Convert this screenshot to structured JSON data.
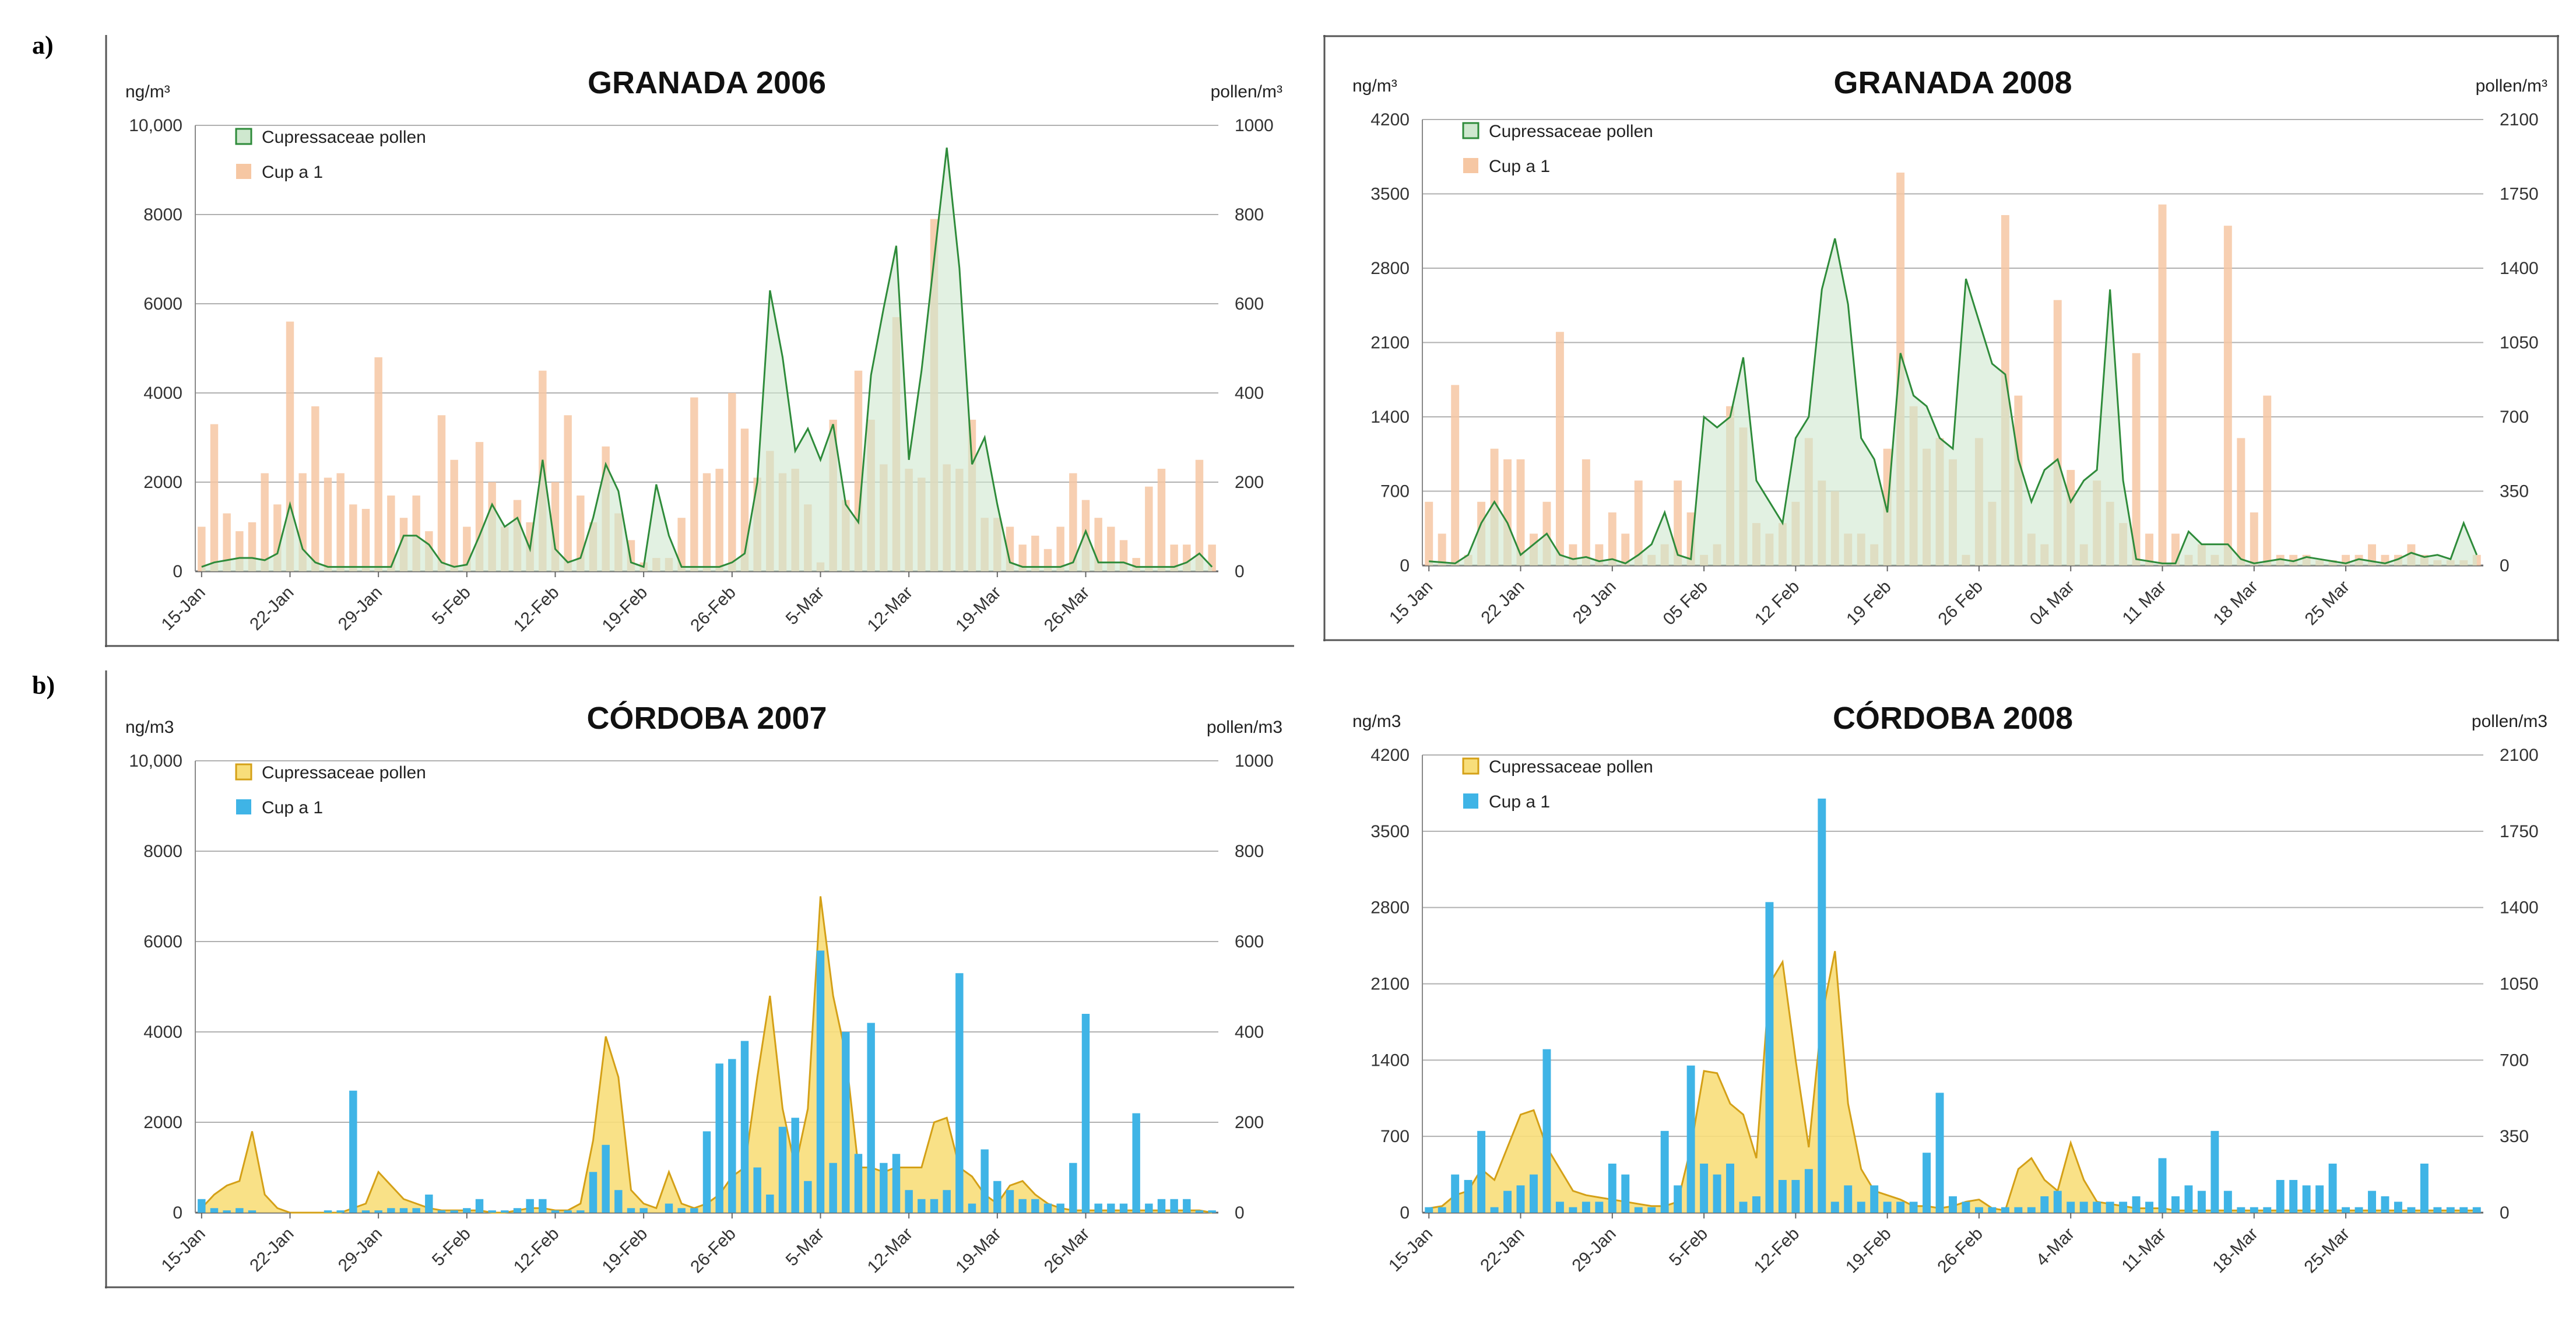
{
  "panels": {
    "a": "a)",
    "b": "b)"
  },
  "colors": {
    "pollen_green_line": "#2e8b3a",
    "pollen_green_fill": "#cfe8cf",
    "pollen_yellow_line": "#d4a017",
    "pollen_yellow_fill": "#f8de7a",
    "cup_orange": "#f6c7a3",
    "cup_blue": "#3fb4e6",
    "grid": "#b0b0b0",
    "frame": "#555555"
  },
  "chart_data": [
    {
      "id": "granada2006",
      "type": "bar+area",
      "title": "GRANADA 2006",
      "ylabel_left": "ng/m³",
      "ylabel_right": "pollen/m³",
      "left_ylim": [
        0,
        10000
      ],
      "left_ticks": [
        0,
        2000,
        4000,
        6000,
        8000,
        10000
      ],
      "left_tick_labels": [
        "0",
        "2000",
        "4000",
        "6000",
        "8000",
        "10,000"
      ],
      "right_ylim": [
        0,
        1000
      ],
      "right_ticks": [
        0,
        200,
        400,
        600,
        800,
        1000
      ],
      "right_tick_labels": [
        "0",
        "200",
        "400",
        "600",
        "800",
        "1000"
      ],
      "x_tick_labels": [
        "15-Jan",
        "22-Jan",
        "29-Jan",
        "5-Feb",
        "12-Feb",
        "19-Feb",
        "26-Feb",
        "5-Mar",
        "12-Mar",
        "19-Mar",
        "26-Mar"
      ],
      "days": 81,
      "legend": [
        {
          "label": "Cupressaceae pollen",
          "kind": "area"
        },
        {
          "label": "Cup a 1",
          "kind": "bar"
        }
      ],
      "pollen_style": "green",
      "bar_style": "orange",
      "series": [
        {
          "name": "Cup a 1",
          "axis": "left",
          "values": [
            1000,
            3300,
            1300,
            900,
            1100,
            2200,
            1500,
            5600,
            2200,
            3700,
            2100,
            2200,
            1500,
            1400,
            4800,
            1700,
            1200,
            1700,
            900,
            3500,
            2500,
            1000,
            2900,
            2000,
            1000,
            1600,
            1100,
            4500,
            2000,
            3500,
            1700,
            1100,
            2800,
            1300,
            700,
            200,
            300,
            300,
            1200,
            3900,
            2200,
            2300,
            4000,
            3200,
            2100,
            2700,
            2200,
            2300,
            1500,
            200,
            3400,
            1600,
            4500,
            3400,
            2400,
            5700,
            2300,
            2100,
            7900,
            2400,
            2300,
            3400,
            1200,
            1200,
            1000,
            600,
            800,
            500,
            1000,
            2200,
            1600,
            1200,
            1000,
            700,
            300,
            1900,
            2300,
            600,
            600,
            2500,
            600
          ]
        },
        {
          "name": "Cupressaceae pollen",
          "axis": "right",
          "values": [
            10,
            20,
            25,
            30,
            30,
            25,
            40,
            150,
            50,
            20,
            10,
            10,
            10,
            10,
            10,
            10,
            80,
            80,
            60,
            20,
            10,
            15,
            80,
            150,
            100,
            120,
            50,
            250,
            50,
            20,
            30,
            120,
            240,
            180,
            20,
            10,
            195,
            80,
            10,
            10,
            10,
            10,
            20,
            40,
            200,
            630,
            480,
            270,
            320,
            250,
            330,
            150,
            110,
            440,
            590,
            730,
            250,
            450,
            700,
            950,
            680,
            240,
            300,
            150,
            20,
            10,
            10,
            10,
            10,
            20,
            90,
            20,
            20,
            20,
            10,
            10,
            10,
            10,
            20,
            40,
            10
          ]
        }
      ]
    },
    {
      "id": "granada2008",
      "type": "bar+area",
      "title": "GRANADA 2008",
      "ylabel_left": "ng/m³",
      "ylabel_right": "pollen/m³",
      "left_ylim": [
        0,
        4200
      ],
      "left_ticks": [
        0,
        700,
        1400,
        2100,
        2800,
        3500,
        4200
      ],
      "left_tick_labels": [
        "0",
        "700",
        "1400",
        "2100",
        "2800",
        "3500",
        "4200"
      ],
      "right_ylim": [
        0,
        2100
      ],
      "right_ticks": [
        0,
        350,
        700,
        1050,
        1400,
        1750,
        2100
      ],
      "right_tick_labels": [
        "0",
        "350",
        "700",
        "1050",
        "1400",
        "1750",
        "2100"
      ],
      "x_tick_labels": [
        "15 Jan",
        "22 Jan",
        "29 Jan",
        "05 Feb",
        "12 Feb",
        "19 Feb",
        "26 Feb",
        "04 Mar",
        "11 Mar",
        "18 Mar",
        "25 Mar"
      ],
      "days": 81,
      "legend": [
        {
          "label": "Cupressaceae pollen",
          "kind": "area"
        },
        {
          "label": "Cup a 1",
          "kind": "bar"
        }
      ],
      "pollen_style": "green",
      "bar_style": "orange",
      "series": [
        {
          "name": "Cup a 1",
          "axis": "left",
          "values": [
            600,
            300,
            1700,
            100,
            600,
            1100,
            1000,
            1000,
            300,
            600,
            2200,
            200,
            1000,
            200,
            500,
            300,
            800,
            100,
            200,
            800,
            500,
            100,
            200,
            1500,
            1300,
            400,
            300,
            400,
            600,
            1200,
            800,
            700,
            300,
            300,
            200,
            1100,
            3700,
            1500,
            1100,
            1200,
            1000,
            100,
            1200,
            600,
            3300,
            1600,
            300,
            200,
            2500,
            900,
            200,
            800,
            600,
            400,
            2000,
            300,
            3400,
            300,
            100,
            200,
            100,
            3200,
            1200,
            500,
            1600,
            100,
            100,
            100,
            50,
            50,
            100,
            100,
            200,
            100,
            100,
            200,
            100,
            50,
            50,
            50,
            100
          ]
        },
        {
          "name": "Cupressaceae pollen",
          "axis": "right",
          "values": [
            20,
            15,
            10,
            50,
            200,
            300,
            200,
            50,
            100,
            150,
            50,
            30,
            40,
            20,
            30,
            10,
            50,
            100,
            250,
            50,
            30,
            700,
            650,
            700,
            980,
            400,
            300,
            200,
            600,
            700,
            1300,
            1540,
            1230,
            600,
            500,
            250,
            1000,
            800,
            750,
            600,
            550,
            1350,
            1150,
            950,
            900,
            500,
            300,
            450,
            500,
            300,
            400,
            450,
            1300,
            400,
            30,
            20,
            10,
            10,
            160,
            100,
            100,
            100,
            30,
            10,
            20,
            30,
            20,
            40,
            30,
            20,
            10,
            30,
            20,
            10,
            30,
            60,
            40,
            50,
            30,
            200,
            50
          ]
        }
      ]
    },
    {
      "id": "cordoba2007",
      "type": "bar+area",
      "title": "CÓRDOBA 2007",
      "ylabel_left": "ng/m3",
      "ylabel_right": "pollen/m3",
      "left_ylim": [
        0,
        10000
      ],
      "left_ticks": [
        0,
        2000,
        4000,
        6000,
        8000,
        10000
      ],
      "left_tick_labels": [
        "0",
        "2000",
        "4000",
        "6000",
        "8000",
        "10,000"
      ],
      "right_ylim": [
        0,
        1000
      ],
      "right_ticks": [
        0,
        200,
        400,
        600,
        800,
        1000
      ],
      "right_tick_labels": [
        "0",
        "200",
        "400",
        "600",
        "800",
        "1000"
      ],
      "x_tick_labels": [
        "15-Jan",
        "22-Jan",
        "29-Jan",
        "5-Feb",
        "12-Feb",
        "19-Feb",
        "26-Feb",
        "5-Mar",
        "12-Mar",
        "19-Mar",
        "26-Mar"
      ],
      "days": 81,
      "legend": [
        {
          "label": "Cupressaceae pollen",
          "kind": "area"
        },
        {
          "label": "Cup a 1",
          "kind": "bar"
        }
      ],
      "pollen_style": "yellow",
      "bar_style": "blue",
      "series": [
        {
          "name": "Cup a 1",
          "axis": "left",
          "values": [
            300,
            100,
            50,
            100,
            50,
            0,
            0,
            0,
            0,
            0,
            50,
            50,
            2700,
            50,
            50,
            100,
            100,
            100,
            400,
            50,
            50,
            100,
            300,
            50,
            50,
            100,
            300,
            300,
            50,
            50,
            50,
            900,
            1500,
            500,
            100,
            100,
            0,
            200,
            100,
            100,
            1800,
            3300,
            3400,
            3800,
            1000,
            400,
            1900,
            2100,
            700,
            5800,
            1100,
            4000,
            1300,
            4200,
            1100,
            1300,
            500,
            300,
            300,
            500,
            5300,
            200,
            1400,
            700,
            500,
            300,
            300,
            200,
            200,
            1100,
            4400,
            200,
            200,
            200,
            2200,
            200,
            300,
            300,
            300,
            50,
            50
          ]
        },
        {
          "name": "Cupressaceae pollen",
          "axis": "right",
          "values": [
            10,
            40,
            60,
            70,
            180,
            40,
            10,
            0,
            0,
            0,
            0,
            0,
            10,
            20,
            90,
            60,
            30,
            20,
            10,
            5,
            5,
            5,
            5,
            0,
            0,
            5,
            10,
            10,
            5,
            5,
            20,
            160,
            390,
            300,
            50,
            20,
            10,
            90,
            20,
            10,
            20,
            40,
            80,
            100,
            300,
            480,
            230,
            100,
            230,
            700,
            480,
            350,
            100,
            100,
            90,
            100,
            100,
            100,
            200,
            210,
            100,
            80,
            40,
            20,
            60,
            70,
            40,
            20,
            10,
            5,
            5,
            5,
            5,
            5,
            5,
            5,
            5,
            5,
            5,
            5,
            0
          ]
        }
      ]
    },
    {
      "id": "cordoba2008",
      "type": "bar+area",
      "title": "CÓRDOBA 2008",
      "ylabel_left": "ng/m3",
      "ylabel_right": "pollen/m3",
      "left_ylim": [
        0,
        4200
      ],
      "left_ticks": [
        0,
        700,
        1400,
        2100,
        2800,
        3500,
        4200
      ],
      "left_tick_labels": [
        "0",
        "700",
        "1400",
        "2100",
        "2800",
        "3500",
        "4200"
      ],
      "right_ylim": [
        0,
        2100
      ],
      "right_ticks": [
        0,
        350,
        700,
        1050,
        1400,
        1750,
        2100
      ],
      "right_tick_labels": [
        "0",
        "350",
        "700",
        "1050",
        "1400",
        "1750",
        "2100"
      ],
      "x_tick_labels": [
        "15-Jan",
        "22-Jan",
        "29-Jan",
        "5-Feb",
        "12-Feb",
        "19-Feb",
        "26-Feb",
        "4-Mar",
        "11-Mar",
        "18-Mar",
        "25-Mar"
      ],
      "days": 81,
      "legend": [
        {
          "label": "Cupressaceae pollen",
          "kind": "area"
        },
        {
          "label": "Cup a 1",
          "kind": "bar"
        }
      ],
      "pollen_style": "yellow",
      "bar_style": "blue",
      "series": [
        {
          "name": "Cup a 1",
          "axis": "left",
          "values": [
            50,
            50,
            350,
            300,
            750,
            50,
            200,
            250,
            350,
            1500,
            100,
            50,
            100,
            100,
            450,
            350,
            50,
            50,
            750,
            250,
            1350,
            450,
            350,
            450,
            100,
            150,
            2850,
            300,
            300,
            400,
            3800,
            100,
            250,
            100,
            250,
            100,
            100,
            100,
            550,
            1100,
            150,
            100,
            50,
            50,
            50,
            50,
            50,
            150,
            200,
            100,
            100,
            100,
            100,
            100,
            150,
            100,
            500,
            150,
            250,
            200,
            750,
            200,
            50,
            50,
            50,
            300,
            300,
            250,
            250,
            450,
            50,
            50,
            200,
            150,
            100,
            50,
            450,
            50,
            50,
            50,
            50
          ]
        },
        {
          "name": "Cupressaceae pollen",
          "axis": "right",
          "values": [
            20,
            30,
            80,
            100,
            200,
            150,
            300,
            450,
            470,
            300,
            200,
            100,
            80,
            70,
            60,
            50,
            40,
            30,
            30,
            50,
            300,
            650,
            640,
            500,
            450,
            250,
            1050,
            1150,
            700,
            300,
            900,
            1200,
            500,
            200,
            100,
            80,
            60,
            30,
            30,
            20,
            30,
            50,
            60,
            20,
            10,
            200,
            250,
            150,
            100,
            320,
            150,
            50,
            40,
            30,
            20,
            20,
            20,
            10,
            10,
            10,
            10,
            10,
            10,
            10,
            10,
            10,
            10,
            10,
            10,
            10,
            10,
            10,
            10,
            10,
            10,
            10,
            10,
            10,
            10,
            10,
            10
          ]
        }
      ]
    }
  ]
}
